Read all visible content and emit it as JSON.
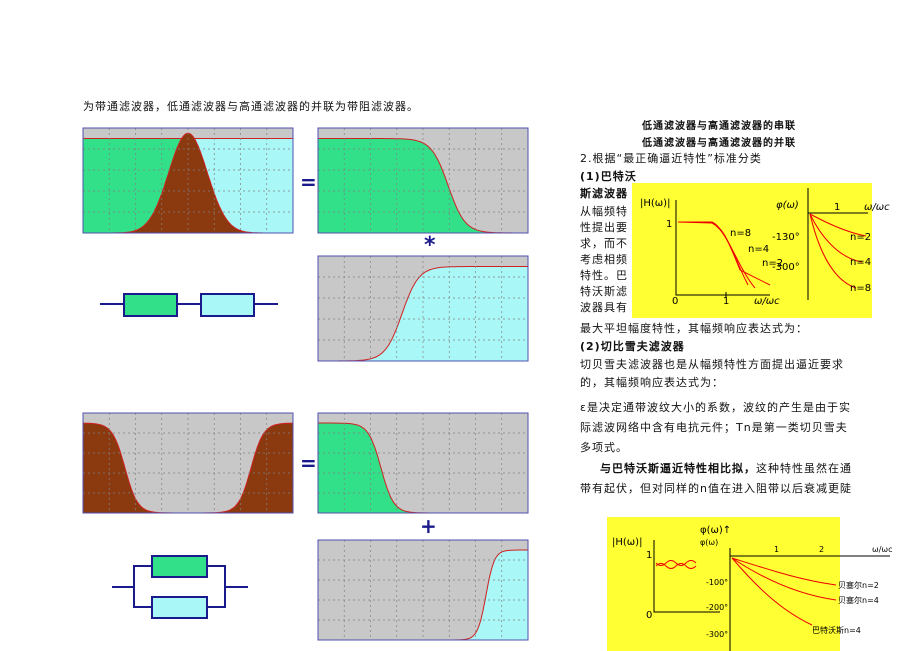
{
  "intro": "为带通滤波器，低通滤波器与高通滤波器的并联为带阻滤波器。",
  "operators": {
    "equals_1": "=",
    "convolve": "*",
    "equals_2": "=",
    "plus": "+"
  },
  "captions": {
    "series": "低通滤波器与高通滤波器的串联",
    "parallel": "低通滤波器与高通滤波器的并联"
  },
  "section_heading": "2.根据“最正确逼近特性”标准分类",
  "butterworth": {
    "heading_lines": [
      "(1)巴特沃",
      "斯滤波器"
    ],
    "narrow_lines": [
      "从幅频特",
      "性提出要",
      "求，而不",
      "考虑相频",
      "特性。巴",
      "特沃斯滤",
      "波器具有"
    ],
    "last_line": "最大平坦幅度特性，其幅频响应表达式为："
  },
  "chebyshev": {
    "heading": "(2)切比雪夫滤波器",
    "intro_lines": [
      "切贝雪夫滤波器也是从幅频特性方面提出逼近要求",
      "的，其幅频响应表达式为："
    ],
    "epsilon_lines": [
      "ε是决定通带波纹大小的系数，波纹的产生是由于实",
      "际滤波网络中含有电抗元件；Tn是第一类切贝雪夫",
      "多项式。"
    ],
    "compare_bold": "与巴特沃斯逼近特性相比拟，",
    "compare_rest": "这种特性虽然在通",
    "compare_line2": "带有起伏，但对同样的n值在进入阻带以后衰减更陡"
  },
  "figure_1": {
    "mag_label": "|H(ω)|",
    "mag_one": "1",
    "origin": "0",
    "x_one": "1",
    "x_label": "ω/ωc",
    "mag_curves": [
      "n=8",
      "n=4",
      "n=2"
    ],
    "phase_label": "φ(ω)",
    "phase_one": "1",
    "phase_x_label": "ω/ωc",
    "phase_ticks": [
      "-130°",
      "-300°"
    ],
    "phase_curves": [
      "n=2",
      "n=4",
      "n=8"
    ]
  },
  "figure_2": {
    "title": "φ(ω)↑",
    "mag_label": "|H(ω)|",
    "mag_one": "1",
    "origin": "0",
    "phase_label": "φ(ω)",
    "x_ticks": [
      "1",
      "2"
    ],
    "x_label": "ω/ωc",
    "phase_ticks": [
      "-100°",
      "-200°",
      "-300°"
    ],
    "curves": [
      "贝塞尔n=2",
      "贝塞尔n=4",
      "巴特沃斯n=4"
    ]
  }
}
